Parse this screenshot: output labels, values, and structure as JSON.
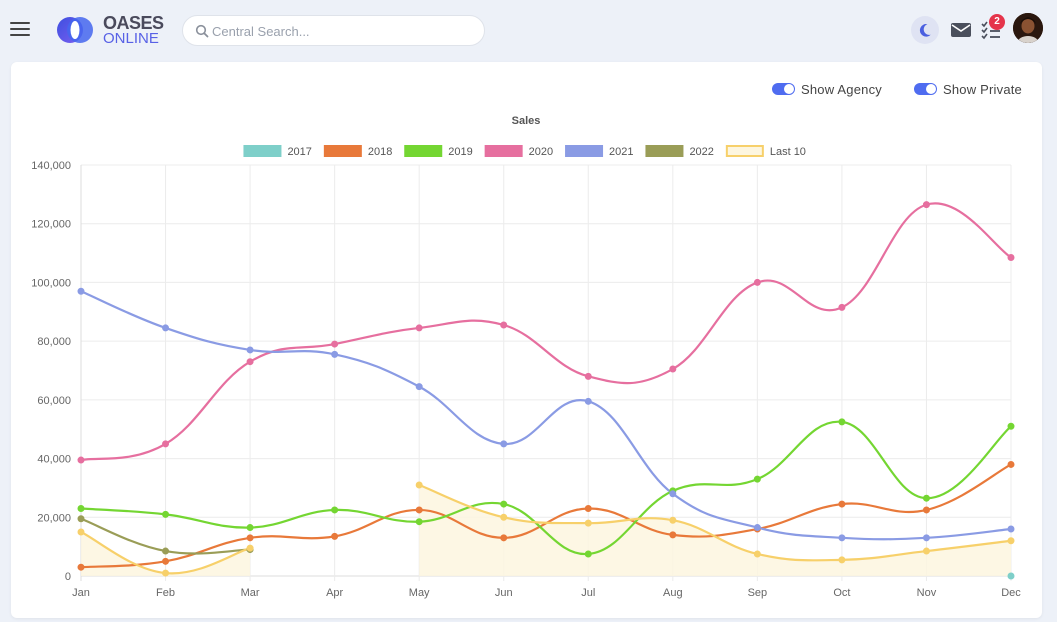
{
  "header": {
    "logo_line1": "OASES",
    "logo_line2": "ONLINE",
    "search_placeholder": "Central Search...",
    "tasks_badge": "2",
    "icons": [
      "menu-icon",
      "search-icon",
      "moon-icon",
      "mail-icon",
      "tasks-icon"
    ]
  },
  "toggles": {
    "agency_label": "Show Agency",
    "agency_on": true,
    "private_label": "Show Private",
    "private_on": true,
    "accent_color": "#4f6cf0"
  },
  "chart_data": {
    "type": "line",
    "title": "Sales",
    "xlabel": "",
    "ylabel": "",
    "categories": [
      "Jan",
      "Feb",
      "Mar",
      "Apr",
      "May",
      "Jun",
      "Jul",
      "Aug",
      "Sep",
      "Oct",
      "Nov",
      "Dec"
    ],
    "ylim": [
      0,
      140000
    ],
    "yticks": [
      "0",
      "20,000",
      "40,000",
      "60,000",
      "80,000",
      "100,000",
      "120,000",
      "140,000"
    ],
    "grid": true,
    "legend": "top",
    "series": [
      {
        "name": "2017",
        "color": "#7ecfc9",
        "values": [
          null,
          null,
          null,
          null,
          null,
          null,
          null,
          null,
          null,
          null,
          null,
          0
        ]
      },
      {
        "name": "2018",
        "color": "#e8793a",
        "values": [
          3000,
          5000,
          13000,
          13500,
          22500,
          13000,
          23000,
          14000,
          16000,
          24500,
          22500,
          38000
        ]
      },
      {
        "name": "2019",
        "color": "#74d632",
        "values": [
          23000,
          21000,
          16500,
          22500,
          18500,
          24500,
          7500,
          29000,
          33000,
          52500,
          26500,
          51000
        ]
      },
      {
        "name": "2020",
        "color": "#e66f9f",
        "values": [
          39500,
          45000,
          73000,
          79000,
          84500,
          85500,
          68000,
          70500,
          100000,
          91500,
          126500,
          108500
        ]
      },
      {
        "name": "2021",
        "color": "#8a9be4",
        "values": [
          97000,
          84500,
          77000,
          75500,
          64500,
          45000,
          59500,
          28000,
          16500,
          13000,
          13000,
          16000
        ]
      },
      {
        "name": "2022",
        "color": "#9a9d57",
        "values": [
          19500,
          8500,
          9000,
          null,
          null,
          null,
          null,
          null,
          null,
          null,
          null,
          null
        ]
      },
      {
        "name": "Last 10",
        "color": "#f7d06a",
        "fill": "#fdf6df",
        "values": [
          15000,
          1000,
          9500,
          null,
          31000,
          20000,
          18000,
          19000,
          7500,
          5500,
          8500,
          12000
        ]
      }
    ]
  }
}
